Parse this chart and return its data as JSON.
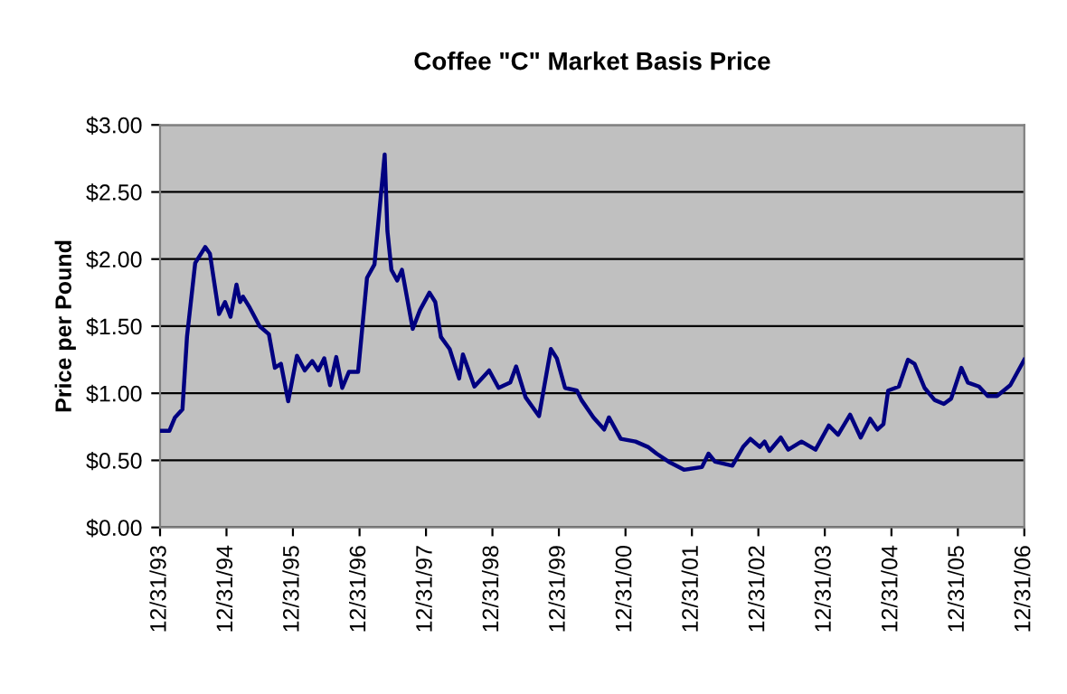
{
  "chart_data": {
    "type": "line",
    "title": "Coffee \"C\" Market Basis Price",
    "ylabel": "Price per Pound",
    "x": [
      "1993-12-31",
      "1994-02-20",
      "1994-03-23",
      "1994-05-03",
      "1994-05-28",
      "1994-07-12",
      "1994-09-05",
      "1994-10-01",
      "1994-11-20",
      "1994-12-23",
      "1995-01-22",
      "1995-02-24",
      "1995-03-16",
      "1995-04-01",
      "1995-05-07",
      "1995-07-01",
      "1995-08-21",
      "1995-09-23",
      "1995-10-26",
      "1995-12-05",
      "1996-01-22",
      "1996-03-05",
      "1996-04-15",
      "1996-05-18",
      "1996-06-20",
      "1996-07-22",
      "1996-08-25",
      "1996-09-27",
      "1996-11-03",
      "1996-12-23",
      "1997-02-10",
      "1997-03-23",
      "1997-04-26",
      "1997-05-18",
      "1997-06-02",
      "1997-06-24",
      "1997-07-26",
      "1997-08-21",
      "1997-10-19",
      "1997-11-28",
      "1998-01-19",
      "1998-02-20",
      "1998-03-23",
      "1998-05-10",
      "1998-07-01",
      "1998-07-22",
      "1998-09-23",
      "1998-12-13",
      "1999-02-03",
      "1999-04-08",
      "1999-05-10",
      "1999-07-01",
      "1999-09-13",
      "1999-11-17",
      "1999-12-20",
      "2000-02-03",
      "2000-04-08",
      "2000-05-03",
      "2000-07-08",
      "2000-09-05",
      "2000-10-01",
      "2000-12-05",
      "2001-02-24",
      "2001-05-03",
      "2001-06-20",
      "2001-08-25",
      "2001-11-17",
      "2002-02-24",
      "2002-04-01",
      "2002-05-07",
      "2002-08-10",
      "2002-10-08",
      "2002-11-17",
      "2003-01-08",
      "2003-02-03",
      "2003-03-02",
      "2003-05-03",
      "2003-06-13",
      "2003-08-25",
      "2003-11-10",
      "2004-01-22",
      "2004-03-13",
      "2004-05-18",
      "2004-07-15",
      "2004-09-05",
      "2004-10-15",
      "2004-11-17",
      "2004-12-13",
      "2005-02-10",
      "2005-04-01",
      "2005-05-07",
      "2005-07-01",
      "2005-08-25",
      "2005-10-15",
      "2005-11-24",
      "2006-01-19",
      "2006-02-24",
      "2006-04-26",
      "2006-06-13",
      "2006-08-03",
      "2006-10-15",
      "2006-12-31"
    ],
    "series": [
      {
        "color": "#000080",
        "values": [
          0.72,
          0.72,
          0.82,
          0.88,
          1.42,
          1.97,
          2.09,
          2.04,
          1.59,
          1.68,
          1.57,
          1.81,
          1.68,
          1.72,
          1.64,
          1.5,
          1.44,
          1.19,
          1.22,
          0.94,
          1.28,
          1.17,
          1.24,
          1.17,
          1.26,
          1.06,
          1.27,
          1.04,
          1.16,
          1.16,
          1.86,
          1.96,
          2.46,
          2.78,
          2.21,
          1.92,
          1.84,
          1.92,
          1.48,
          1.62,
          1.75,
          1.68,
          1.42,
          1.33,
          1.11,
          1.29,
          1.05,
          1.17,
          1.04,
          1.08,
          1.2,
          0.97,
          0.83,
          1.33,
          1.26,
          1.04,
          1.02,
          0.95,
          0.82,
          0.73,
          0.82,
          0.66,
          0.64,
          0.6,
          0.55,
          0.49,
          0.43,
          0.45,
          0.55,
          0.49,
          0.46,
          0.6,
          0.66,
          0.6,
          0.64,
          0.57,
          0.67,
          0.58,
          0.64,
          0.58,
          0.76,
          0.69,
          0.84,
          0.67,
          0.81,
          0.73,
          0.77,
          1.02,
          1.05,
          1.25,
          1.22,
          1.04,
          0.95,
          0.92,
          0.96,
          1.19,
          1.08,
          1.05,
          0.98,
          0.98,
          1.06,
          1.25
        ]
      }
    ],
    "xlim": [
      "1993-12-31",
      "2006-12-31"
    ],
    "xticks": [
      {
        "value": "1993-12-31",
        "label": "12/31/93"
      },
      {
        "value": "1994-12-31",
        "label": "12/31/94"
      },
      {
        "value": "1995-12-31",
        "label": "12/31/95"
      },
      {
        "value": "1996-12-31",
        "label": "12/31/96"
      },
      {
        "value": "1997-12-31",
        "label": "12/31/97"
      },
      {
        "value": "1998-12-31",
        "label": "12/31/98"
      },
      {
        "value": "1999-12-31",
        "label": "12/31/99"
      },
      {
        "value": "2000-12-31",
        "label": "12/31/00"
      },
      {
        "value": "2001-12-31",
        "label": "12/31/01"
      },
      {
        "value": "2002-12-31",
        "label": "12/31/02"
      },
      {
        "value": "2003-12-31",
        "label": "12/31/03"
      },
      {
        "value": "2004-12-31",
        "label": "12/31/04"
      },
      {
        "value": "2005-12-31",
        "label": "12/31/05"
      },
      {
        "value": "2006-12-31",
        "label": "12/31/06"
      }
    ],
    "ylim": [
      0,
      3
    ],
    "yticks": [
      {
        "value": 0,
        "label": "$0.00"
      },
      {
        "value": 0.5,
        "label": "$0.50"
      },
      {
        "value": 1,
        "label": "$1.00"
      },
      {
        "value": 1.5,
        "label": "$1.50"
      },
      {
        "value": 2,
        "label": "$2.00"
      },
      {
        "value": 2.5,
        "label": "$2.50"
      },
      {
        "value": 3,
        "label": "$3.00"
      }
    ],
    "grid": "y",
    "legend": false,
    "marker": "none",
    "line_style": "solid"
  }
}
